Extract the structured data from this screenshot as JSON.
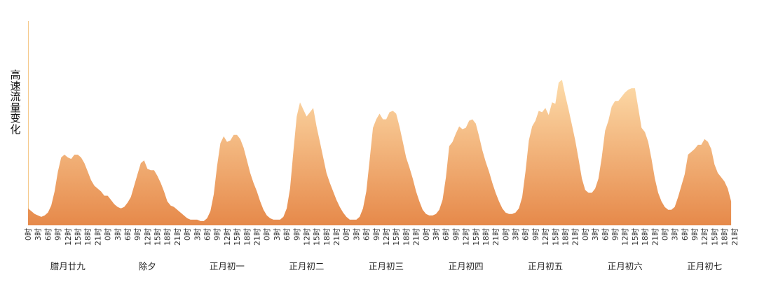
{
  "chart_data": {
    "type": "area",
    "ylabel": "高速流量变化",
    "xlabel": "",
    "title": "",
    "grid": false,
    "legend": "none",
    "colors": {
      "top": "#fddcaa",
      "bottom": "#e6894a",
      "axis": "#f5c98a"
    },
    "hour_ticks": [
      "0时",
      "3时",
      "6时",
      "9时",
      "12时",
      "15时",
      "18时",
      "21时"
    ],
    "days": [
      "腊月廿九",
      "除夕",
      "正月初一",
      "正月初二",
      "正月初三",
      "正月初四",
      "正月初五",
      "正月初六",
      "正月初七"
    ],
    "ylim": [
      0,
      100
    ],
    "points": [
      [
        0,
        12
      ],
      [
        1,
        10
      ],
      [
        2,
        8
      ],
      [
        3,
        7
      ],
      [
        4,
        6
      ],
      [
        5,
        7
      ],
      [
        6,
        9
      ],
      [
        7,
        14
      ],
      [
        8,
        24
      ],
      [
        9,
        38
      ],
      [
        10,
        48
      ],
      [
        11,
        50
      ],
      [
        12,
        48
      ],
      [
        13,
        47
      ],
      [
        14,
        50
      ],
      [
        15,
        50
      ],
      [
        16,
        48
      ],
      [
        17,
        44
      ],
      [
        18,
        38
      ],
      [
        19,
        32
      ],
      [
        20,
        28
      ],
      [
        21,
        26
      ],
      [
        22,
        24
      ],
      [
        23,
        21
      ],
      [
        24,
        21
      ],
      [
        25,
        18
      ],
      [
        26,
        15
      ],
      [
        27,
        13
      ],
      [
        28,
        12
      ],
      [
        29,
        13
      ],
      [
        30,
        16
      ],
      [
        31,
        20
      ],
      [
        32,
        28
      ],
      [
        33,
        36
      ],
      [
        34,
        44
      ],
      [
        35,
        46
      ],
      [
        36,
        40
      ],
      [
        37,
        39
      ],
      [
        38,
        39
      ],
      [
        39,
        35
      ],
      [
        40,
        30
      ],
      [
        41,
        24
      ],
      [
        42,
        17
      ],
      [
        43,
        14
      ],
      [
        44,
        13
      ],
      [
        45,
        11
      ],
      [
        46,
        9
      ],
      [
        47,
        7
      ],
      [
        48,
        5
      ],
      [
        49,
        4
      ],
      [
        50,
        4
      ],
      [
        51,
        4
      ],
      [
        52,
        3
      ],
      [
        53,
        3
      ],
      [
        54,
        5
      ],
      [
        55,
        10
      ],
      [
        56,
        22
      ],
      [
        57,
        42
      ],
      [
        58,
        58
      ],
      [
        59,
        63
      ],
      [
        60,
        59
      ],
      [
        61,
        60
      ],
      [
        62,
        64
      ],
      [
        63,
        64
      ],
      [
        64,
        61
      ],
      [
        65,
        55
      ],
      [
        66,
        46
      ],
      [
        67,
        37
      ],
      [
        68,
        30
      ],
      [
        69,
        24
      ],
      [
        70,
        17
      ],
      [
        71,
        11
      ],
      [
        72,
        7
      ],
      [
        73,
        5
      ],
      [
        74,
        4
      ],
      [
        75,
        4
      ],
      [
        76,
        4
      ],
      [
        77,
        6
      ],
      [
        78,
        12
      ],
      [
        79,
        26
      ],
      [
        80,
        52
      ],
      [
        81,
        77
      ],
      [
        82,
        87
      ],
      [
        83,
        82
      ],
      [
        84,
        77
      ],
      [
        85,
        80
      ],
      [
        86,
        83
      ],
      [
        87,
        70
      ],
      [
        88,
        59
      ],
      [
        89,
        48
      ],
      [
        90,
        37
      ],
      [
        91,
        30
      ],
      [
        92,
        24
      ],
      [
        93,
        18
      ],
      [
        94,
        13
      ],
      [
        95,
        9
      ],
      [
        96,
        6
      ],
      [
        97,
        4
      ],
      [
        98,
        4
      ],
      [
        99,
        4
      ],
      [
        100,
        6
      ],
      [
        101,
        12
      ],
      [
        102,
        24
      ],
      [
        103,
        46
      ],
      [
        104,
        69
      ],
      [
        105,
        75
      ],
      [
        106,
        79
      ],
      [
        107,
        75
      ],
      [
        108,
        75
      ],
      [
        109,
        80
      ],
      [
        110,
        81
      ],
      [
        111,
        79
      ],
      [
        112,
        70
      ],
      [
        113,
        59
      ],
      [
        114,
        48
      ],
      [
        115,
        41
      ],
      [
        116,
        33
      ],
      [
        117,
        24
      ],
      [
        118,
        17
      ],
      [
        119,
        11
      ],
      [
        120,
        8
      ],
      [
        121,
        7
      ],
      [
        122,
        7
      ],
      [
        123,
        8
      ],
      [
        124,
        11
      ],
      [
        125,
        18
      ],
      [
        126,
        34
      ],
      [
        127,
        56
      ],
      [
        128,
        59
      ],
      [
        129,
        65
      ],
      [
        130,
        70
      ],
      [
        131,
        68
      ],
      [
        132,
        69
      ],
      [
        133,
        74
      ],
      [
        134,
        75
      ],
      [
        135,
        72
      ],
      [
        136,
        63
      ],
      [
        137,
        53
      ],
      [
        138,
        45
      ],
      [
        139,
        38
      ],
      [
        140,
        30
      ],
      [
        141,
        23
      ],
      [
        142,
        17
      ],
      [
        143,
        12
      ],
      [
        144,
        9
      ],
      [
        145,
        8
      ],
      [
        146,
        8
      ],
      [
        147,
        9
      ],
      [
        148,
        12
      ],
      [
        149,
        20
      ],
      [
        150,
        38
      ],
      [
        151,
        60
      ],
      [
        152,
        70
      ],
      [
        153,
        74
      ],
      [
        154,
        81
      ],
      [
        155,
        80
      ],
      [
        156,
        83
      ],
      [
        157,
        78
      ],
      [
        158,
        87
      ],
      [
        159,
        86
      ],
      [
        160,
        101
      ],
      [
        161,
        103
      ],
      [
        162,
        92
      ],
      [
        163,
        82
      ],
      [
        164,
        71
      ],
      [
        165,
        60
      ],
      [
        166,
        47
      ],
      [
        167,
        33
      ],
      [
        168,
        25
      ],
      [
        169,
        23
      ],
      [
        170,
        23
      ],
      [
        171,
        26
      ],
      [
        172,
        33
      ],
      [
        173,
        48
      ],
      [
        174,
        67
      ],
      [
        175,
        74
      ],
      [
        176,
        84
      ],
      [
        177,
        88
      ],
      [
        178,
        88
      ],
      [
        179,
        91
      ],
      [
        180,
        94
      ],
      [
        181,
        96
      ],
      [
        182,
        97
      ],
      [
        183,
        97
      ],
      [
        184,
        83
      ],
      [
        185,
        69
      ],
      [
        186,
        66
      ],
      [
        187,
        59
      ],
      [
        188,
        47
      ],
      [
        189,
        33
      ],
      [
        190,
        23
      ],
      [
        191,
        17
      ],
      [
        192,
        13
      ],
      [
        193,
        11
      ],
      [
        194,
        11
      ],
      [
        195,
        13
      ],
      [
        196,
        20
      ],
      [
        197,
        28
      ],
      [
        198,
        36
      ],
      [
        199,
        50
      ],
      [
        200,
        52
      ],
      [
        201,
        54
      ],
      [
        202,
        57
      ],
      [
        203,
        57
      ],
      [
        204,
        61
      ],
      [
        205,
        59
      ],
      [
        206,
        54
      ],
      [
        207,
        43
      ],
      [
        208,
        37
      ],
      [
        209,
        34
      ],
      [
        210,
        31
      ],
      [
        211,
        26
      ],
      [
        212,
        17
      ]
    ]
  }
}
